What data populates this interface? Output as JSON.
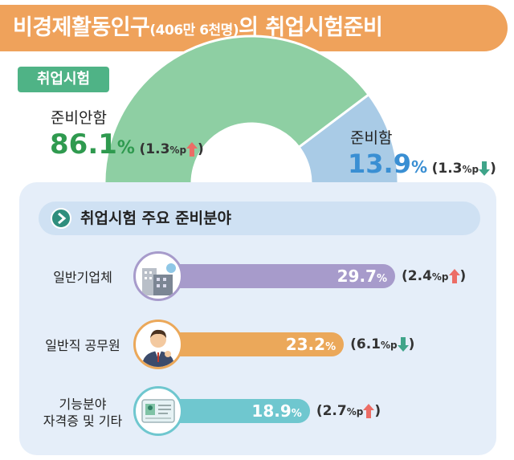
{
  "title": {
    "main_prefix": "비경제활동인구",
    "paren": "(406만 6천명)",
    "suffix": "의 취업시험준비"
  },
  "badge": "취업시험",
  "chart_data": [
    {
      "type": "pie",
      "title": "취업시험",
      "categories": [
        "준비안함",
        "준비함"
      ],
      "values": [
        86.1,
        13.9
      ],
      "unit": "%",
      "changes": [
        {
          "value": 1.3,
          "unit": "%p",
          "direction": "up"
        },
        {
          "value": 1.3,
          "unit": "%p",
          "direction": "down"
        }
      ],
      "colors": [
        "#8ecfa3",
        "#a9cbe6"
      ]
    },
    {
      "type": "bar",
      "title": "취업시험 주요 준비분야",
      "categories": [
        "일반기업체",
        "일반직 공무원",
        "기능분야 자격증 및 기타"
      ],
      "values": [
        29.7,
        23.2,
        18.9
      ],
      "unit": "%",
      "changes": [
        {
          "value": 2.4,
          "unit": "%p",
          "direction": "up"
        },
        {
          "value": 6.1,
          "unit": "%p",
          "direction": "down"
        },
        {
          "value": 2.7,
          "unit": "%p",
          "direction": "up"
        }
      ],
      "colors": [
        "#a79bcb",
        "#eba85a",
        "#6fc7cf"
      ]
    }
  ],
  "donut": {
    "not_prepared": {
      "label": "준비안함",
      "pct": "86.1",
      "pct_unit": "%",
      "chg": "1.3",
      "chg_unit": "%p"
    },
    "prepared": {
      "label": "준비함",
      "pct": "13.9",
      "pct_unit": "%",
      "chg": "1.3",
      "chg_unit": "%p"
    }
  },
  "section_header": "취업시험 주요 준비분야",
  "bars": [
    {
      "label1": "일반기업체",
      "label2": "",
      "value": "29.7",
      "unit": "%",
      "chg": "2.4",
      "chg_unit": "%p"
    },
    {
      "label1": "일반직 공무원",
      "label2": "",
      "value": "23.2",
      "unit": "%",
      "chg": "6.1",
      "chg_unit": "%p"
    },
    {
      "label1": "기능분야",
      "label2": "자격증 및 기타",
      "value": "18.9",
      "unit": "%",
      "chg": "2.7",
      "chg_unit": "%p"
    }
  ],
  "icons": [
    "building-icon",
    "public-servant-icon",
    "certificate-icon",
    "arrow-up-icon",
    "arrow-down-icon",
    "chevron-right-icon"
  ],
  "colors": {
    "banner": "#efa25b",
    "badge": "#4fb386",
    "up": "#ec6d66",
    "down": "#3fa489",
    "green_text": "#2f9a4f",
    "blue_text": "#3a8fd3"
  }
}
